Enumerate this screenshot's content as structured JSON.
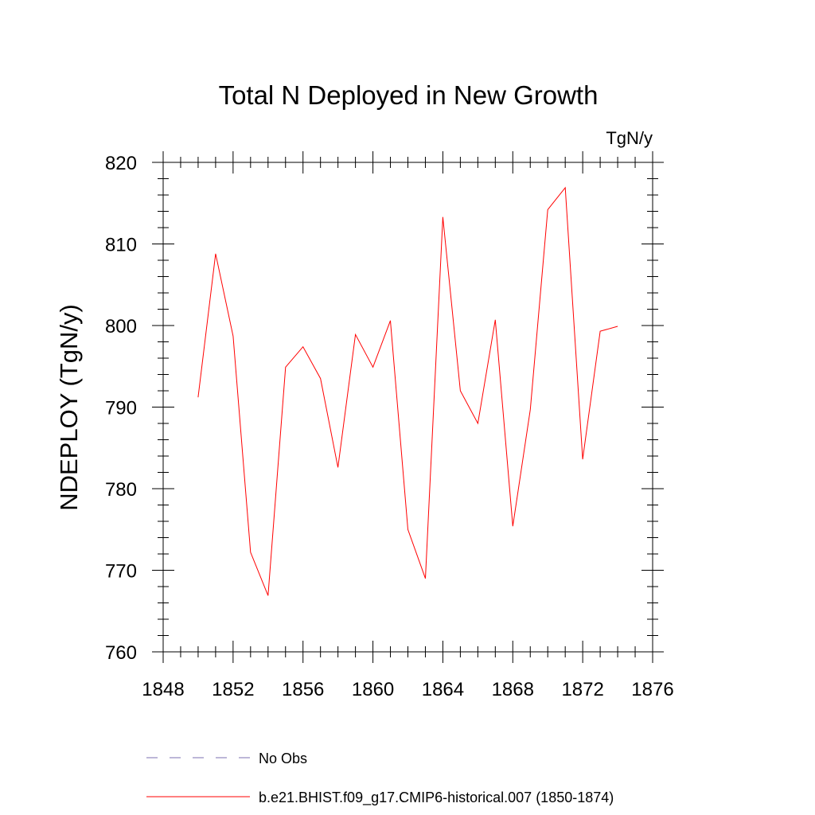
{
  "chart_data": {
    "type": "line",
    "title": "Total N Deployed in New Growth",
    "units_label": "TgN/y",
    "ylabel": "NDEPLOY  (TgN/y)",
    "xlabel": "",
    "xlim": [
      1848,
      1876
    ],
    "ylim": [
      760,
      820
    ],
    "x_ticks": [
      1848,
      1852,
      1856,
      1860,
      1864,
      1868,
      1872,
      1876
    ],
    "y_ticks": [
      760,
      770,
      780,
      790,
      800,
      810,
      820
    ],
    "grid": false,
    "legend_position": "bottom",
    "x": [
      1850,
      1851,
      1852,
      1853,
      1854,
      1855,
      1856,
      1857,
      1858,
      1859,
      1860,
      1861,
      1862,
      1863,
      1864,
      1865,
      1866,
      1867,
      1868,
      1869,
      1870,
      1871,
      1872,
      1873,
      1874
    ],
    "series": [
      {
        "name": "b.e21.BHIST.f09_g17.CMIP6-historical.007 (1850-1874)",
        "color": "#ff0000",
        "style": "solid",
        "values": [
          791.2,
          808.8,
          798.7,
          772.2,
          766.9,
          794.9,
          797.4,
          793.5,
          782.6,
          798.9,
          794.9,
          800.6,
          775.0,
          769.0,
          813.3,
          792.0,
          788.0,
          800.7,
          775.4,
          789.7,
          814.2,
          816.9,
          783.6,
          799.3,
          799.9
        ]
      }
    ],
    "legend": [
      {
        "label": "No Obs",
        "color": "#7b6fb0",
        "style": "dashed"
      },
      {
        "label": "b.e21.BHIST.f09_g17.CMIP6-historical.007 (1850-1874)",
        "color": "#ff0000",
        "style": "solid"
      }
    ]
  }
}
